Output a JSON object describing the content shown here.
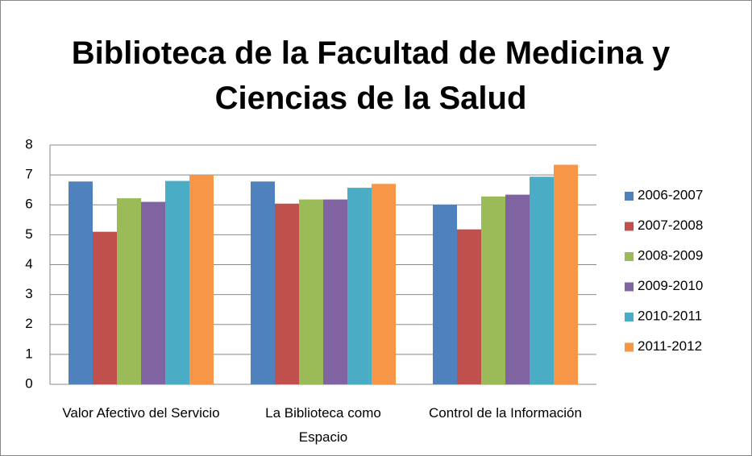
{
  "chart_data": {
    "type": "bar",
    "title": "Biblioteca de la Facultad de Medicina y Ciencias de la Salud",
    "categories": [
      "Valor Afectivo del Servicio",
      "La Biblioteca como Espacio",
      "Control de la Información"
    ],
    "series": [
      {
        "name": "2006-2007",
        "color": "#4f81bd",
        "values": [
          6.78,
          6.78,
          6.0
        ]
      },
      {
        "name": "2007-2008",
        "color": "#c0504d",
        "values": [
          5.1,
          6.04,
          5.18
        ]
      },
      {
        "name": "2008-2009",
        "color": "#9bbb59",
        "values": [
          6.22,
          6.18,
          6.28
        ]
      },
      {
        "name": "2009-2010",
        "color": "#8064a2",
        "values": [
          6.1,
          6.18,
          6.34
        ]
      },
      {
        "name": "2010-2011",
        "color": "#4bacc6",
        "values": [
          6.8,
          6.57,
          6.94
        ]
      },
      {
        "name": "2011-2012",
        "color": "#f79646",
        "values": [
          7.0,
          6.7,
          7.34
        ]
      }
    ],
    "ylim": [
      0,
      8
    ],
    "yticks": [
      0,
      1,
      2,
      3,
      4,
      5,
      6,
      7,
      8
    ],
    "grid": true,
    "legend": "right"
  }
}
